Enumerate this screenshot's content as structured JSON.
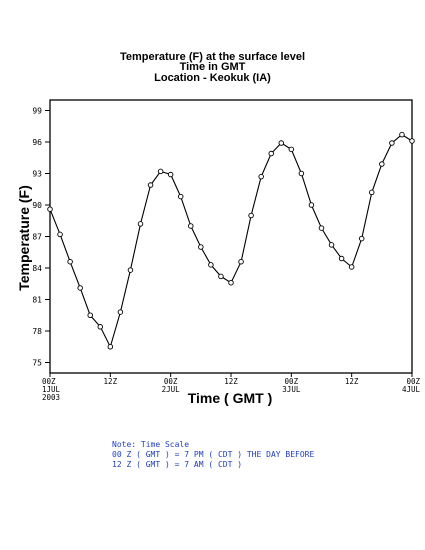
{
  "chart_data": {
    "type": "line",
    "title": "Temperature (F) at the surface level",
    "subtitle_1": "Time in GMT",
    "subtitle_2": "Location - Keokuk (IA)",
    "xlabel": "Time ( GMT )",
    "ylabel": "Temperature (F)",
    "ylim": [
      74,
      100
    ],
    "yticks": [
      75,
      78,
      81,
      84,
      87,
      90,
      93,
      96,
      99
    ],
    "grid": false,
    "x_ticks": [
      {
        "hour": 0,
        "label": [
          "00Z",
          "1JUL",
          "2003"
        ]
      },
      {
        "hour": 12,
        "label": [
          "12Z"
        ]
      },
      {
        "hour": 24,
        "label": [
          "00Z",
          "2JUL"
        ]
      },
      {
        "hour": 36,
        "label": [
          "12Z"
        ]
      },
      {
        "hour": 48,
        "label": [
          "00Z",
          "3JUL"
        ]
      },
      {
        "hour": 60,
        "label": [
          "12Z"
        ]
      },
      {
        "hour": 72,
        "label": [
          "00Z",
          "4JUL"
        ]
      }
    ],
    "series": [
      {
        "x": [
          0,
          2,
          4,
          6,
          8,
          10,
          12,
          14,
          16,
          18,
          20,
          22,
          24,
          26,
          28,
          30,
          32,
          34,
          36,
          38,
          40,
          42,
          44,
          46,
          48,
          50,
          52,
          54,
          56,
          58,
          60,
          62,
          64,
          66,
          68,
          70,
          72
        ],
        "values": [
          89.6,
          87.2,
          84.6,
          82.1,
          79.5,
          78.4,
          76.5,
          79.8,
          83.8,
          88.2,
          91.9,
          93.2,
          92.9,
          90.8,
          88.0,
          86.0,
          84.3,
          83.2,
          82.6,
          84.6,
          89.0,
          92.7,
          94.9,
          95.9,
          95.3,
          93.0,
          90.0,
          87.8,
          86.2,
          84.9,
          84.1,
          86.8,
          91.2,
          93.9,
          95.9,
          96.7,
          96.1
        ]
      }
    ]
  },
  "notes": [
    "Note: Time Scale",
    "00 Z ( GMT ) = 7 PM ( CDT ) THE DAY BEFORE",
    "12 Z ( GMT ) = 7 AM ( CDT )"
  ]
}
